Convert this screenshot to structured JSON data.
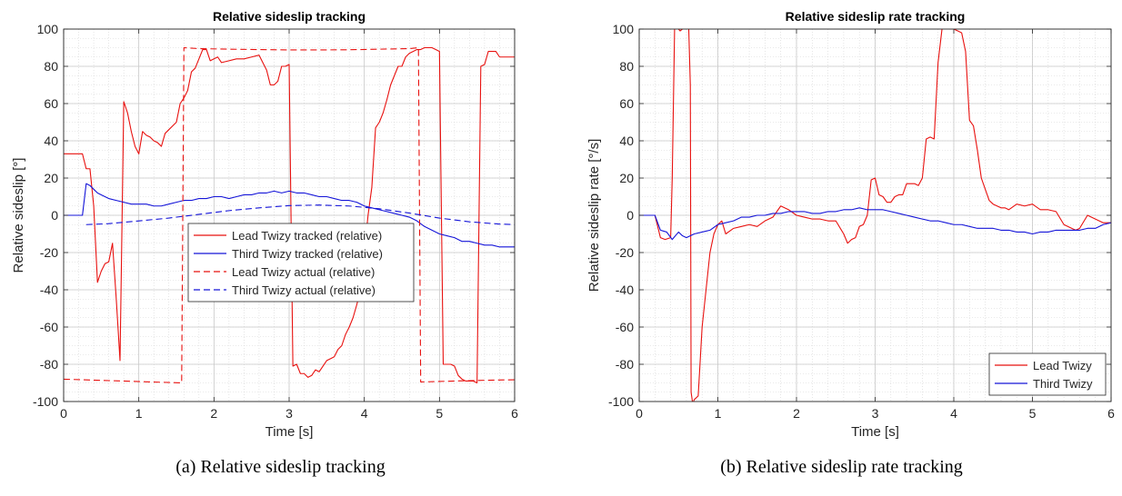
{
  "captions": {
    "a": "(a) Relative sideslip tracking",
    "b": "(b) Relative sideslip rate tracking"
  },
  "colors": {
    "red": "#e8110f",
    "blue": "#1414d8",
    "grid": "#d4d4d4",
    "axis": "#262626"
  },
  "chart_data": [
    {
      "type": "line",
      "title": "Relative sideslip tracking",
      "xlabel": "Time [s]",
      "ylabel": "Relative sideslip [°]",
      "xlim": [
        0,
        6
      ],
      "ylim": [
        -100,
        100
      ],
      "xticks": [
        0,
        1,
        2,
        3,
        4,
        5,
        6
      ],
      "yticks": [
        -100,
        -80,
        -60,
        -40,
        -20,
        0,
        20,
        40,
        60,
        80,
        100
      ],
      "grid": true,
      "minor_grid": true,
      "legend_position": "center-right",
      "series": [
        {
          "name": "Lead Twizy tracked (relative)",
          "color": "red",
          "dash": "solid",
          "x": [
            0,
            0.25,
            0.3,
            0.35,
            0.4,
            0.45,
            0.5,
            0.55,
            0.6,
            0.65,
            0.7,
            0.75,
            0.8,
            0.85,
            0.9,
            0.95,
            1.0,
            1.05,
            1.1,
            1.15,
            1.2,
            1.25,
            1.3,
            1.35,
            1.4,
            1.45,
            1.5,
            1.55,
            1.6,
            1.65,
            1.7,
            1.75,
            1.8,
            1.85,
            1.9,
            1.95,
            2.0,
            2.05,
            2.1,
            2.2,
            2.3,
            2.4,
            2.5,
            2.6,
            2.7,
            2.75,
            2.8,
            2.85,
            2.9,
            2.95,
            3.0,
            3.05,
            3.1,
            3.15,
            3.2,
            3.25,
            3.3,
            3.35,
            3.4,
            3.45,
            3.5,
            3.55,
            3.6,
            3.65,
            3.7,
            3.75,
            3.8,
            3.85,
            3.9,
            3.95,
            4.0,
            4.05,
            4.1,
            4.15,
            4.2,
            4.25,
            4.3,
            4.35,
            4.4,
            4.45,
            4.5,
            4.55,
            4.6,
            4.65,
            4.7,
            4.75,
            4.8,
            4.85,
            4.9,
            4.95,
            5.0,
            5.05,
            5.1,
            5.15,
            5.2,
            5.25,
            5.3,
            5.35,
            5.4,
            5.45,
            5.5,
            5.55,
            5.6,
            5.65,
            5.7,
            5.75,
            5.8,
            5.85,
            5.9,
            5.95,
            6.0
          ],
          "y": [
            33,
            33,
            25,
            25,
            5,
            -36,
            -30,
            -26,
            -25,
            -15,
            -45,
            -78,
            61,
            55,
            45,
            37,
            33,
            45,
            43,
            42,
            40,
            39,
            37,
            44,
            46,
            48,
            50,
            60,
            63,
            67,
            77,
            79,
            84,
            89,
            89,
            83,
            84,
            85,
            82,
            83,
            84,
            84,
            85,
            86,
            78,
            70,
            70,
            72,
            80,
            80,
            81,
            -81,
            -80,
            -85,
            -85,
            -87,
            -86,
            -83,
            -84,
            -81,
            -78,
            -77,
            -76,
            -72,
            -70,
            -64,
            -60,
            -55,
            -48,
            -40,
            -20,
            0,
            15,
            47,
            50,
            55,
            62,
            70,
            75,
            80,
            80,
            85,
            87,
            88,
            89,
            89,
            90,
            90,
            90,
            89,
            88,
            -80,
            -80,
            -80,
            -81,
            -86,
            -88,
            -89,
            -89,
            -89,
            -90,
            80,
            81,
            88,
            88,
            88,
            85,
            85,
            85,
            85,
            85
          ]
        },
        {
          "name": "Third Twizy tracked (relative)",
          "color": "blue",
          "dash": "solid",
          "x": [
            0,
            0.25,
            0.3,
            0.35,
            0.4,
            0.45,
            0.5,
            0.55,
            0.6,
            0.7,
            0.8,
            0.9,
            1.0,
            1.1,
            1.2,
            1.3,
            1.4,
            1.5,
            1.6,
            1.7,
            1.8,
            1.9,
            2.0,
            2.1,
            2.2,
            2.3,
            2.4,
            2.5,
            2.6,
            2.7,
            2.8,
            2.9,
            3.0,
            3.1,
            3.2,
            3.3,
            3.4,
            3.5,
            3.6,
            3.7,
            3.8,
            3.9,
            4.0,
            4.1,
            4.2,
            4.3,
            4.4,
            4.5,
            4.6,
            4.7,
            4.8,
            4.9,
            5.0,
            5.1,
            5.2,
            5.3,
            5.4,
            5.5,
            5.6,
            5.7,
            5.8,
            5.9,
            6.0
          ],
          "y": [
            0,
            0,
            17,
            16,
            14,
            12,
            11,
            10,
            9,
            8,
            7,
            6,
            6,
            6,
            5,
            5,
            6,
            7,
            8,
            8,
            9,
            9,
            10,
            10,
            9,
            10,
            11,
            11,
            12,
            12,
            13,
            12,
            13,
            12,
            12,
            11,
            10,
            10,
            9,
            8,
            8,
            7,
            5,
            4,
            3,
            2,
            1,
            0,
            -1,
            -3,
            -6,
            -8,
            -10,
            -11,
            -12,
            -14,
            -14,
            -15,
            -16,
            -16,
            -17,
            -17,
            -17
          ]
        },
        {
          "name": "Lead Twizy actual (relative)",
          "color": "red",
          "dash": "dashed",
          "x": [
            0,
            1.57,
            1.6,
            1.8,
            2.2,
            2.6,
            3.0,
            3.4,
            3.8,
            4.2,
            4.6,
            4.72,
            4.75,
            5.2,
            5.6,
            6.0
          ],
          "y": [
            -88,
            -90,
            90,
            89.5,
            89.2,
            89,
            88.8,
            88.8,
            88.9,
            89.2,
            89.5,
            90,
            -89.5,
            -89,
            -88.6,
            -88.3
          ]
        },
        {
          "name": "Third Twizy actual (relative)",
          "color": "blue",
          "dash": "dashed",
          "x": [
            0.3,
            0.6,
            1.0,
            1.4,
            1.8,
            2.2,
            2.6,
            3.0,
            3.4,
            3.8,
            4.2,
            4.6,
            5.0,
            5.4,
            5.8,
            6.0
          ],
          "y": [
            -5,
            -4.5,
            -3,
            -1.5,
            0.5,
            2.5,
            4,
            5.2,
            5.5,
            5,
            3.5,
            1.2,
            -1.5,
            -3.5,
            -4.7,
            -5
          ]
        }
      ]
    },
    {
      "type": "line",
      "title": "Relative sideslip rate tracking",
      "xlabel": "Time [s]",
      "ylabel": "Relative sideslip rate [°/s]",
      "xlim": [
        0,
        6
      ],
      "ylim": [
        -100,
        100
      ],
      "xticks": [
        0,
        1,
        2,
        3,
        4,
        5,
        6
      ],
      "yticks": [
        -100,
        -80,
        -60,
        -40,
        -20,
        0,
        20,
        40,
        60,
        80,
        100
      ],
      "grid": true,
      "minor_grid": true,
      "legend_position": "bottom-right",
      "series": [
        {
          "name": "Lead Twizy",
          "color": "red",
          "dash": "solid",
          "x": [
            0,
            0.2,
            0.27,
            0.33,
            0.4,
            0.42,
            0.45,
            0.48,
            0.5,
            0.52,
            0.55,
            0.6,
            0.63,
            0.65,
            0.66,
            0.68,
            0.7,
            0.75,
            0.8,
            0.85,
            0.9,
            0.95,
            1.0,
            1.05,
            1.1,
            1.2,
            1.3,
            1.4,
            1.5,
            1.6,
            1.7,
            1.8,
            1.9,
            2.0,
            2.1,
            2.2,
            2.3,
            2.4,
            2.5,
            2.6,
            2.65,
            2.7,
            2.75,
            2.8,
            2.85,
            2.9,
            2.95,
            3.0,
            3.05,
            3.1,
            3.15,
            3.2,
            3.25,
            3.3,
            3.35,
            3.4,
            3.45,
            3.5,
            3.55,
            3.6,
            3.65,
            3.7,
            3.75,
            3.8,
            3.85,
            3.9,
            3.95,
            4.0,
            4.05,
            4.1,
            4.15,
            4.2,
            4.25,
            4.3,
            4.35,
            4.4,
            4.45,
            4.5,
            4.55,
            4.6,
            4.65,
            4.7,
            4.8,
            4.9,
            5.0,
            5.1,
            5.2,
            5.3,
            5.4,
            5.5,
            5.55,
            5.6,
            5.7,
            5.8,
            5.9,
            6.0
          ],
          "y": [
            0,
            0,
            -12,
            -13,
            -12,
            20,
            100,
            101,
            100,
            99,
            100,
            101,
            100,
            70,
            -95,
            -101,
            -99,
            -97,
            -60,
            -40,
            -20,
            -10,
            -5,
            -3,
            -10,
            -7,
            -6,
            -5,
            -6,
            -3,
            -1,
            5,
            3,
            0,
            -1,
            -2,
            -2,
            -3,
            -3,
            -10,
            -15,
            -13,
            -12,
            -6,
            -5,
            0,
            19,
            20,
            11,
            10,
            7,
            7,
            10,
            11,
            11,
            17,
            17,
            17,
            16,
            20,
            41,
            42,
            41,
            82,
            100,
            101,
            100,
            100,
            99,
            98,
            88,
            51,
            48,
            35,
            20,
            14,
            8,
            6,
            5,
            4,
            4,
            3,
            6,
            5,
            6,
            3,
            3,
            2,
            -5,
            -7,
            -8,
            -7,
            0,
            -2,
            -4,
            -4
          ]
        },
        {
          "name": "Third Twizy",
          "color": "blue",
          "dash": "solid",
          "x": [
            0,
            0.2,
            0.27,
            0.35,
            0.42,
            0.5,
            0.55,
            0.6,
            0.7,
            0.8,
            0.9,
            1.0,
            1.1,
            1.2,
            1.3,
            1.4,
            1.5,
            1.6,
            1.7,
            1.8,
            1.9,
            2.0,
            2.1,
            2.2,
            2.3,
            2.4,
            2.5,
            2.6,
            2.7,
            2.8,
            2.9,
            3.0,
            3.1,
            3.2,
            3.3,
            3.4,
            3.5,
            3.6,
            3.7,
            3.8,
            3.9,
            4.0,
            4.1,
            4.2,
            4.3,
            4.4,
            4.5,
            4.6,
            4.7,
            4.8,
            4.9,
            5.0,
            5.1,
            5.2,
            5.3,
            5.4,
            5.5,
            5.6,
            5.7,
            5.8,
            5.9,
            6.0
          ],
          "y": [
            0,
            0,
            -8,
            -9,
            -13,
            -9,
            -11,
            -12,
            -10,
            -9,
            -8,
            -5,
            -4,
            -3,
            -1,
            -1,
            0,
            0,
            1,
            1,
            2,
            2,
            2,
            1,
            1,
            2,
            2,
            3,
            3,
            4,
            3,
            3,
            3,
            2,
            1,
            0,
            -1,
            -2,
            -3,
            -3,
            -4,
            -5,
            -5,
            -6,
            -7,
            -7,
            -7,
            -8,
            -8,
            -9,
            -9,
            -10,
            -9,
            -9,
            -8,
            -8,
            -8,
            -8,
            -7,
            -7,
            -5,
            -4
          ]
        }
      ]
    }
  ]
}
